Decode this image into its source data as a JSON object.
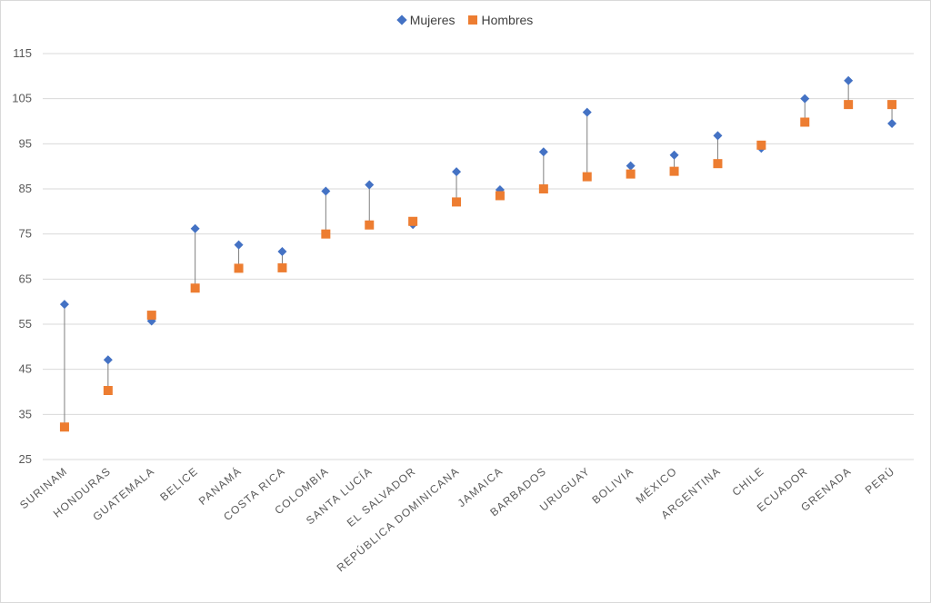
{
  "chart_data": {
    "type": "scatter",
    "categories": [
      "SURINAM",
      "HONDURAS",
      "GUATEMALA",
      "BELICE",
      "PANAMÁ",
      "COSTA RICA",
      "COLOMBIA",
      "SANTA LUCÍA",
      "EL SALVADOR",
      "REPÚBLICA DOMINICANA",
      "JAMAICA",
      "BARBADOS",
      "URUGUAY",
      "BOLIVIA",
      "MÉXICO",
      "ARGENTINA",
      "CHILE",
      "ECUADOR",
      "GRENADA",
      "PERÚ"
    ],
    "series": [
      {
        "name": "Mujeres",
        "color": "#4472c4",
        "marker": "diamond",
        "values": [
          59.4,
          47.1,
          55.7,
          76.2,
          72.6,
          71.1,
          84.5,
          85.9,
          77.1,
          88.8,
          84.8,
          93.2,
          102.0,
          90.1,
          92.5,
          96.8,
          94.0,
          105.0,
          109.0,
          99.5
        ]
      },
      {
        "name": "Hombres",
        "color": "#ed7d31",
        "marker": "square",
        "values": [
          32.2,
          40.3,
          57.0,
          63.0,
          67.4,
          67.5,
          75.0,
          77.0,
          77.8,
          82.1,
          83.5,
          85.0,
          87.7,
          88.3,
          88.9,
          90.6,
          94.7,
          99.8,
          103.7,
          103.7
        ]
      }
    ],
    "y_ticks": [
      "25",
      "35",
      "45",
      "55",
      "65",
      "75",
      "85",
      "95",
      "105",
      "115"
    ],
    "ylim": [
      25,
      115
    ],
    "grid": true,
    "legend_position": "top-center",
    "title": "",
    "xlabel": "",
    "ylabel": ""
  }
}
